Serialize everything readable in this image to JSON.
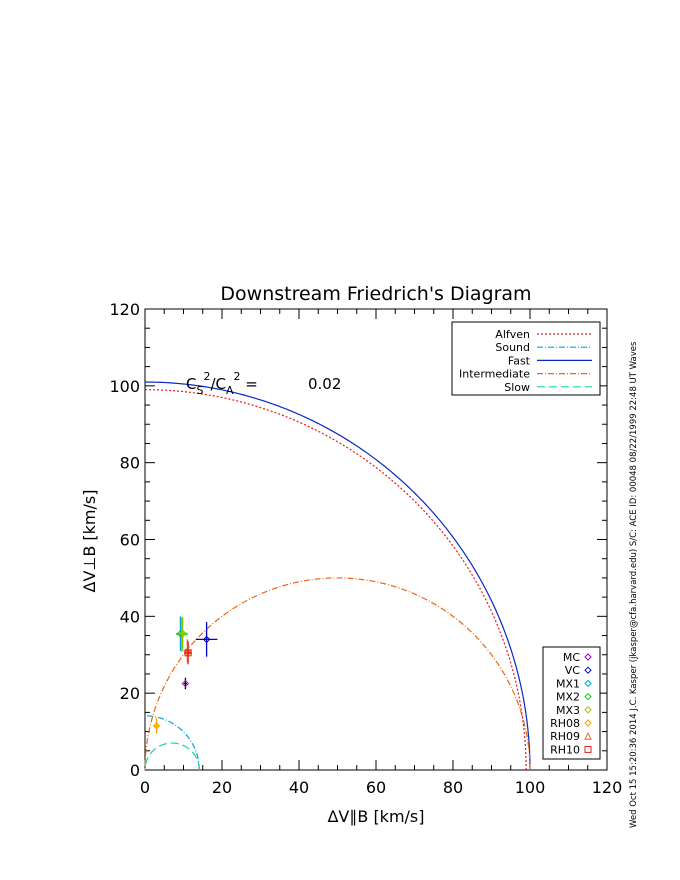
{
  "chart_data": {
    "type": "line",
    "title": "Downstream Friedrich's Diagram",
    "xlabel": "ΔV∥B [km/s]",
    "ylabel": "ΔV⊥B [km/s]",
    "xlim": [
      0,
      120
    ],
    "ylim": [
      0,
      120
    ],
    "xticks": [
      "0",
      "20",
      "40",
      "60",
      "80",
      "100",
      "120"
    ],
    "yticks": [
      "0",
      "20",
      "40",
      "60",
      "80",
      "100",
      "120"
    ],
    "grid": false,
    "annotation": {
      "base_label": "C",
      "sub1": "S",
      "sup1": "2",
      "slash": "/C",
      "sub2": "A",
      "sup2": "2",
      "equals": " = ",
      "value": "0.02"
    },
    "series": [
      {
        "name": "Alfven",
        "color": "#e8191a",
        "dash": "2,2",
        "curve": "alfven",
        "vA": 100
      },
      {
        "name": "Sound",
        "color": "#00a8d8",
        "dash": "6,2,1,2",
        "curve": "sound",
        "cs": 14.1
      },
      {
        "name": "Fast",
        "color": "#0a26c6",
        "dash": "",
        "curve": "fast",
        "vA": 100,
        "cs": 14.1
      },
      {
        "name": "Intermediate",
        "color": "#e8691a",
        "dash": "6,2,1,2",
        "curve": "intermediate",
        "vA": 100
      },
      {
        "name": "Slow",
        "color": "#13d8a8",
        "dash": "8,4",
        "curve": "slow",
        "vA": 100,
        "cs": 14.1
      }
    ],
    "points": [
      {
        "name": "MC",
        "color": "#000000",
        "marker": "diamond",
        "x": 10.5,
        "y": 22.5,
        "xerr": 0.4,
        "yerr": 1.5,
        "mcolor": "#a000c8"
      },
      {
        "name": "VC",
        "color": "#0000c8",
        "marker": "diamond",
        "x": 16,
        "y": 34,
        "xerr": 2.8,
        "yerr": 4.5,
        "mcolor": "#0000c8"
      },
      {
        "name": "MX1",
        "color": "#00a8d8",
        "marker": "diamond",
        "x": 9.2,
        "y": 35.5,
        "xerr": 1.0,
        "yerr": 4.5,
        "mcolor": "#00a8d8"
      },
      {
        "name": "MX2",
        "color": "#17c81a",
        "marker": "diamond",
        "x": 9.6,
        "y": 35.3,
        "xerr": 1.5,
        "yerr": 4.5,
        "mcolor": "#17c81a"
      },
      {
        "name": "MX3",
        "color": "#90c800",
        "marker": "diamond",
        "x": 9.8,
        "y": 35.6,
        "xerr": 1.2,
        "yerr": 4.0,
        "mcolor": "#90c800"
      },
      {
        "name": "RH08",
        "color": "#f0a800",
        "marker": "diamond",
        "x": 3.0,
        "y": 11.5,
        "xerr": 0.6,
        "yerr": 2.0,
        "mcolor": "#f0a800"
      },
      {
        "name": "RH09",
        "color": "#e8691a",
        "marker": "triangle",
        "x": 11.0,
        "y": 31.0,
        "xerr": 1.0,
        "yerr": 3.0,
        "mcolor": "#e8691a"
      },
      {
        "name": "RH10",
        "color": "#e02010",
        "marker": "square",
        "x": 11.2,
        "y": 30.5,
        "xerr": 1.0,
        "yerr": 3.0,
        "mcolor": "#e02010"
      }
    ],
    "legend_lines_placement": "top-right",
    "legend_points_placement": "bottom-right"
  },
  "side_caption": "Wed Oct 15 15:20:36 2014  J.C. Kasper (jkasper@cfa.harvard.edu)  S/C: ACE ID: 00048 08/22/1999  22:48 UT Waves"
}
